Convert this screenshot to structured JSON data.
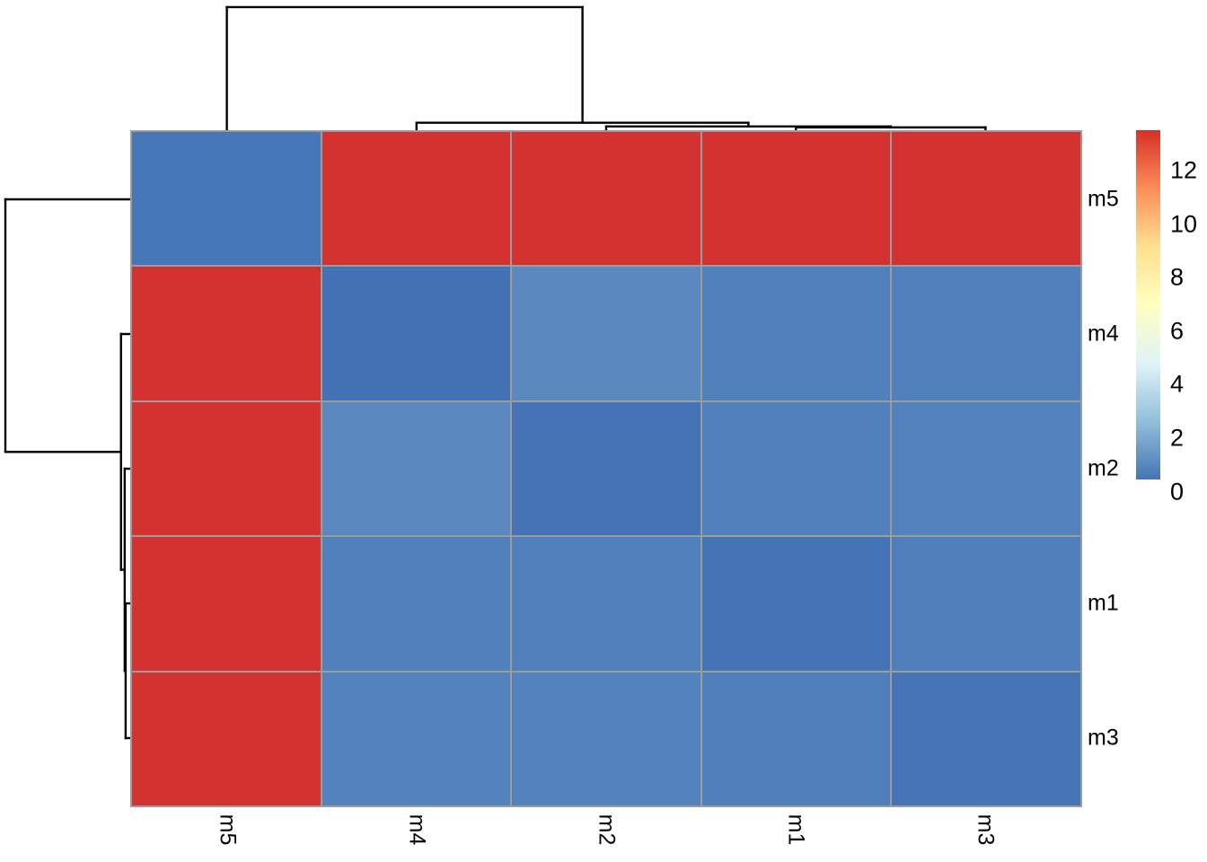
{
  "figure": {
    "background": "#ffffff",
    "type_description": "clustered heatmap with row and column dendrograms"
  },
  "chart_data": {
    "type": "heatmap",
    "title": "",
    "xlabel": "",
    "ylabel": "",
    "columns": [
      "m5",
      "m4",
      "m2",
      "m1",
      "m3"
    ],
    "rows": [
      "m5",
      "m4",
      "m2",
      "m1",
      "m3"
    ],
    "values": [
      [
        0,
        13.4,
        13.4,
        13.4,
        13.4
      ],
      [
        13.4,
        0,
        0.9,
        0.45,
        0.45
      ],
      [
        13.4,
        0.9,
        0,
        0.4,
        0.45
      ],
      [
        13.4,
        0.45,
        0.4,
        0,
        0.4
      ],
      [
        13.4,
        0.45,
        0.45,
        0.4,
        0
      ]
    ],
    "cell_colors": [
      [
        "#4677b7",
        "#d43230",
        "#d43230",
        "#d43230",
        "#d43230"
      ],
      [
        "#d43230",
        "#4373b5",
        "#5c88c0",
        "#5181bd",
        "#5181bd"
      ],
      [
        "#d43230",
        "#5c88c0",
        "#4474b6",
        "#5181bd",
        "#5383bd"
      ],
      [
        "#d43230",
        "#5181bd",
        "#5181bd",
        "#4474b6",
        "#5080bc"
      ],
      [
        "#d43230",
        "#5282bd",
        "#5383bd",
        "#5080bc",
        "#4575b6"
      ]
    ],
    "grid_line_color": "#9c9c9c",
    "legend": {
      "position": "right",
      "ticks": [
        12,
        10,
        8,
        6,
        4,
        2,
        0
      ],
      "min": 0,
      "max": 13.5,
      "gradient_bottom_to_top": [
        "#4575b4",
        "#91bfdb",
        "#e0f3f8",
        "#ffffbf",
        "#fee090",
        "#fc8d59",
        "#d73027"
      ]
    },
    "dendrogram": {
      "line_color": "#000000",
      "leaf_order": [
        "m5",
        "m4",
        "m2",
        "m1",
        "m3"
      ],
      "merges": [
        {
          "join": [
            "m1",
            "m3"
          ],
          "height": 0.4
        },
        {
          "join": [
            "m2",
            "(m1,m3)"
          ],
          "height": 0.5
        },
        {
          "join": [
            "m4",
            "(m2,(m1,m3))"
          ],
          "height": 0.9
        },
        {
          "join": [
            "m5",
            "(m4,(m2,(m1,m3)))"
          ],
          "height": 13.4
        }
      ]
    }
  }
}
